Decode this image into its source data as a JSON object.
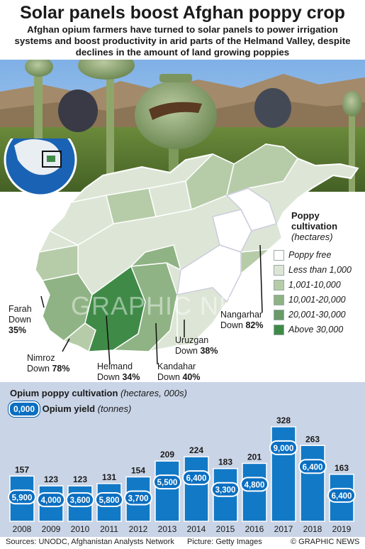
{
  "title": "Solar panels boost Afghan poppy crop",
  "subtitle": "Afghan opium farmers have turned to solar panels to power irrigation systems and boost productivity in arid parts of the Helmand Valley, despite declines in the amount of land growing poppies",
  "map": {
    "legend_title": "Poppy cultivation",
    "legend_unit": "(hectares)",
    "legend": [
      {
        "label": "Poppy free",
        "color": "#ffffff"
      },
      {
        "label": "Less than 1,000",
        "color": "#dde6d6"
      },
      {
        "label": "1,001-10,000",
        "color": "#b6cca8"
      },
      {
        "label": "10,001-20,000",
        "color": "#8fb384"
      },
      {
        "label": "20,001-30,000",
        "color": "#6a9a66"
      },
      {
        "label": "Above 30,000",
        "color": "#3f8a47"
      }
    ],
    "provinces": [
      {
        "name": "Farah",
        "change_word": "Down",
        "pct": "35%"
      },
      {
        "name": "Nimroz",
        "change_word": "Down",
        "pct": "78%"
      },
      {
        "name": "Helmand",
        "change_word": "Down",
        "pct": "34%"
      },
      {
        "name": "Kandahar",
        "change_word": "Down",
        "pct": "40%"
      },
      {
        "name": "Uruzgan",
        "change_word": "Down",
        "pct": "38%"
      },
      {
        "name": "Nangarhar",
        "change_word": "Down",
        "pct": "82%"
      }
    ]
  },
  "chart_title_bold": "Opium poppy cultivation",
  "chart_title_unit": "(hectares, 000s)",
  "yield_key": {
    "sample": "0,000",
    "label_bold": "Opium yield",
    "unit": "(tonnes)"
  },
  "chart_data": {
    "type": "bar",
    "categories": [
      "2008",
      "2009",
      "2010",
      "2011",
      "2012",
      "2013",
      "2014",
      "2015",
      "2016",
      "2017",
      "2018",
      "2019"
    ],
    "series": [
      {
        "name": "Opium poppy cultivation",
        "values": [
          157,
          123,
          123,
          131,
          154,
          209,
          224,
          183,
          201,
          328,
          263,
          163
        ]
      },
      {
        "name": "Opium yield",
        "values": [
          5900,
          4000,
          3600,
          5800,
          3700,
          5500,
          6400,
          3300,
          4800,
          9000,
          6400,
          6400
        ]
      }
    ],
    "cultivation_labels": [
      "157",
      "123",
      "123",
      "131",
      "154",
      "209",
      "224",
      "183",
      "201",
      "328",
      "263",
      "163"
    ],
    "yield_labels": [
      "5,900",
      "4,000",
      "3,600",
      "5,800",
      "3,700",
      "5,500",
      "6,400",
      "3,300",
      "4,800",
      "9,000",
      "6,400",
      "6,400"
    ],
    "bar_color": "#1279c6",
    "ylim": [
      0,
      340
    ]
  },
  "footer": {
    "sources": "Sources: UNODC, Afghanistan Analysts Network",
    "picture": "Picture: Getty Images",
    "credit": "© GRAPHIC NEWS"
  },
  "watermark": "GRAPHIC NEWS"
}
